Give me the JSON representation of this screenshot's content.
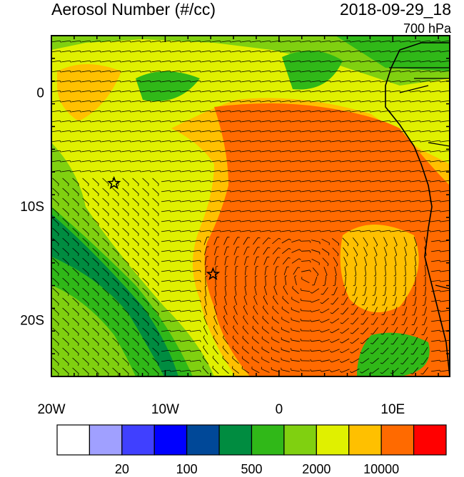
{
  "header": {
    "title": "Aerosol Number (#/cc)",
    "datetime": "2018-09-29_18",
    "level": "700 hPa"
  },
  "axes": {
    "x_ticks": [
      "20W",
      "10W",
      "0",
      "10E"
    ],
    "y_ticks": [
      "0",
      "10S",
      "20S"
    ]
  },
  "colorbar": {
    "colors": [
      "#ffffff",
      "#a0a0ff",
      "#4040ff",
      "#0000ff",
      "#004898",
      "#008c40",
      "#30b818",
      "#80d010",
      "#e0f000",
      "#ffc000",
      "#ff6a00",
      "#ff0000"
    ],
    "labels": [
      "20",
      "100",
      "500",
      "2000",
      "10000"
    ]
  },
  "markers": {
    "stars": [
      {
        "lon": -14.5,
        "lat": -8.0
      },
      {
        "lon": -5.8,
        "lat": -16.0
      }
    ]
  }
}
